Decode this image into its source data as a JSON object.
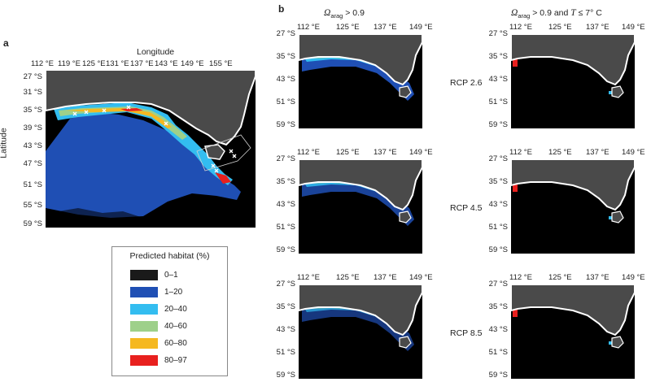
{
  "panel_a": {
    "letter": "a",
    "x_title": "Longitude",
    "y_title": "Latitude",
    "lon_ticks": [
      "112 °E",
      "119 °E",
      "125 °E",
      "131 °E",
      "137 °E",
      "143 °E",
      "149 °E",
      "155 °E"
    ],
    "lat_ticks": [
      "27 °S",
      "31 °S",
      "35 °S",
      "39 °S",
      "43 °S",
      "47 °S",
      "51 °S",
      "55 °S",
      "59 °S"
    ]
  },
  "panel_b": {
    "letter": "b",
    "col1_header": {
      "symbol": "Ω",
      "sub": "arag",
      "rest": " > 0.9"
    },
    "col2_header": {
      "symbol": "Ω",
      "sub": "arag",
      "mid": " > 0.9 and ",
      "tsym": "T",
      "rest": " ≤ 7° C"
    },
    "rows": [
      {
        "scenario": "RCP 2.6"
      },
      {
        "scenario": "RCP 4.5"
      },
      {
        "scenario": "RCP 8.5"
      }
    ],
    "lon_ticks": [
      "112 °E",
      "125 °E",
      "137 °E",
      "149 °E"
    ],
    "lat_ticks": [
      "27 °S",
      "35 °S",
      "43 °S",
      "51 °S",
      "59 °S"
    ]
  },
  "legend": {
    "title": "Predicted habitat (%)",
    "items": [
      {
        "label": "0–1",
        "color": "#1a1a1a"
      },
      {
        "label": "1–20",
        "color": "#1f4fb4"
      },
      {
        "label": "20–40",
        "color": "#33bdf0"
      },
      {
        "label": "40–60",
        "color": "#9ed08a"
      },
      {
        "label": "60–80",
        "color": "#f5b820"
      },
      {
        "label": "80–97",
        "color": "#e8201e"
      }
    ]
  },
  "colors": {
    "ocean": "#000000",
    "land": "#4a4a4a",
    "coast": "#ffffff"
  }
}
